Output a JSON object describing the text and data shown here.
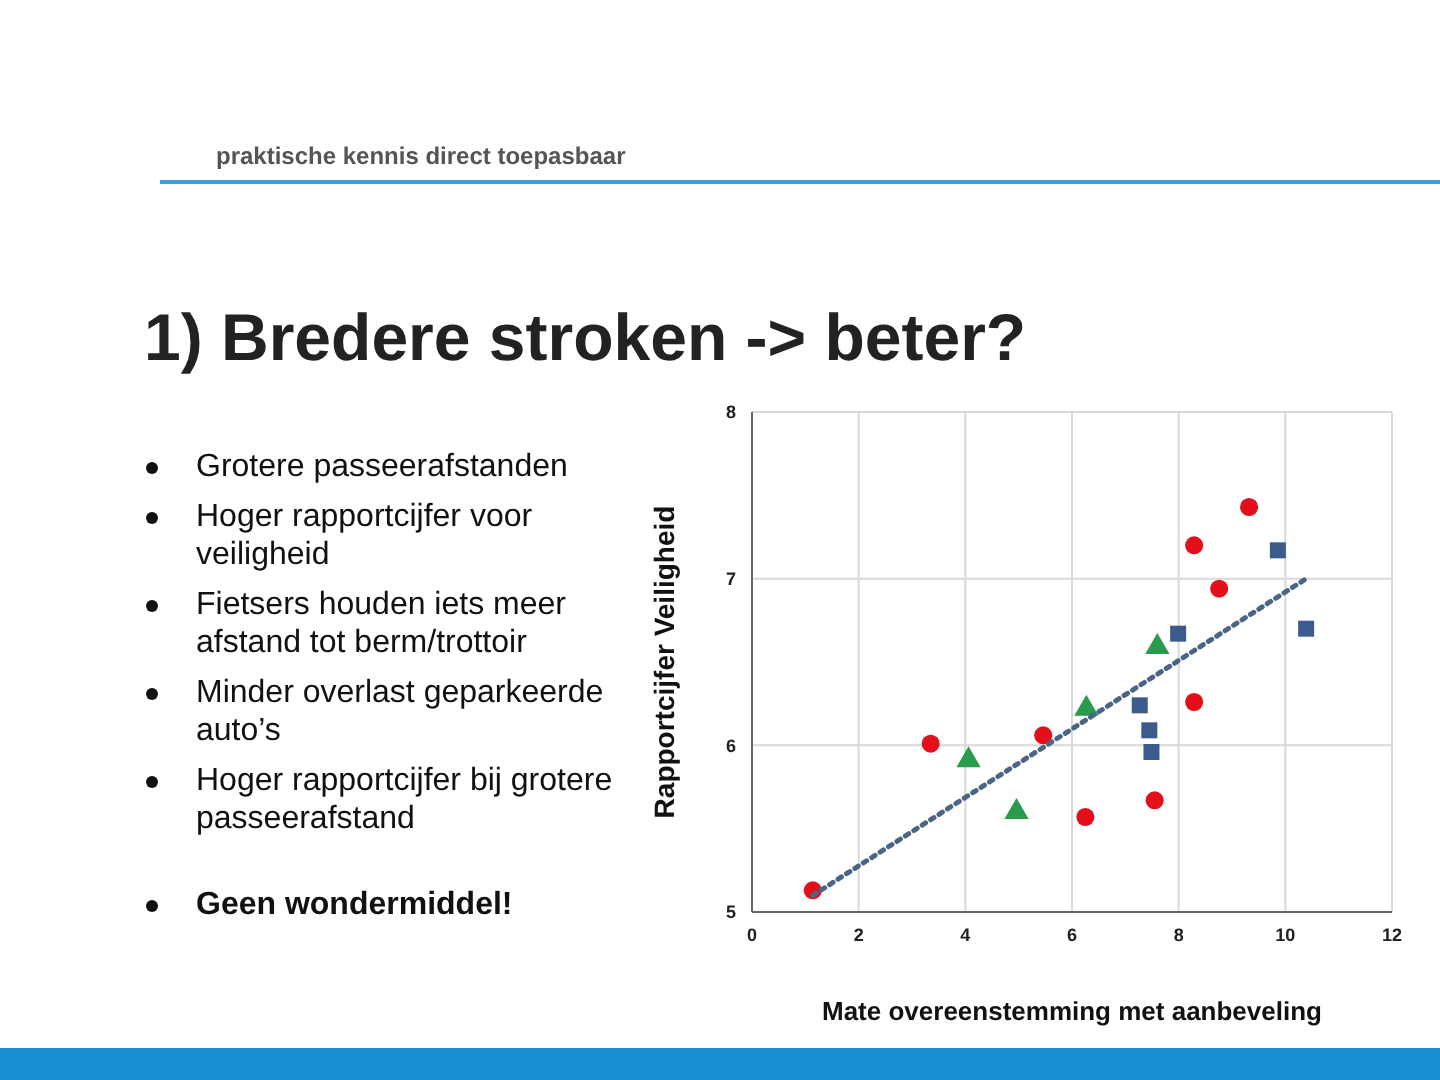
{
  "chart_data": {
    "type": "scatter",
    "title": "1) Bredere stroken -> beter?",
    "xlabel": "Mate overeenstemming met aanbeveling",
    "ylabel": "Rapportcijfer Veiligheid",
    "annotations": [
      "praktische kennis direct toepasbaar",
      "Grotere passeerafstanden",
      "Hoger rapportcijfer voor veiligheid",
      "Fietsers houden iets meer afstand tot berm/trottoir",
      "Minder overlast geparkeerde auto’s",
      "Hoger rapportcijfer bij grotere passeerafstand",
      "Geen wondermiddel!"
    ],
    "xlim": [
      0,
      12
    ],
    "xticks": [
      0,
      2,
      4,
      6,
      8,
      10,
      12
    ],
    "ylim": [
      5,
      8
    ],
    "yticks": [
      5,
      6,
      7,
      8
    ],
    "grid": true,
    "legend": false,
    "series": [
      {
        "color": "#e3101c",
        "marker": "circle",
        "x": [
          1.14,
          3.35,
          5.46,
          6.25,
          7.55,
          8.29,
          8.29,
          8.76,
          9.32
        ],
        "values": [
          5.13,
          6.01,
          6.06,
          5.57,
          5.67,
          7.2,
          6.26,
          6.94,
          7.43
        ]
      },
      {
        "color": "#3b5b8c",
        "marker": "square",
        "x": [
          7.27,
          7.45,
          7.49,
          7.99,
          9.86,
          10.39
        ],
        "values": [
          6.24,
          6.09,
          5.96,
          6.67,
          7.17,
          6.7
        ]
      },
      {
        "color": "#2a9a4c",
        "marker": "triangle",
        "x": [
          4.06,
          4.96,
          6.27,
          7.6
        ],
        "values": [
          5.91,
          5.6,
          6.22,
          6.59
        ]
      },
      {
        "type": "line",
        "color": "#4a6585",
        "marker": "none",
        "line_style": "dotted",
        "x": [
          1.14,
          10.39
        ],
        "values": [
          5.1,
          7.0
        ]
      }
    ]
  }
}
